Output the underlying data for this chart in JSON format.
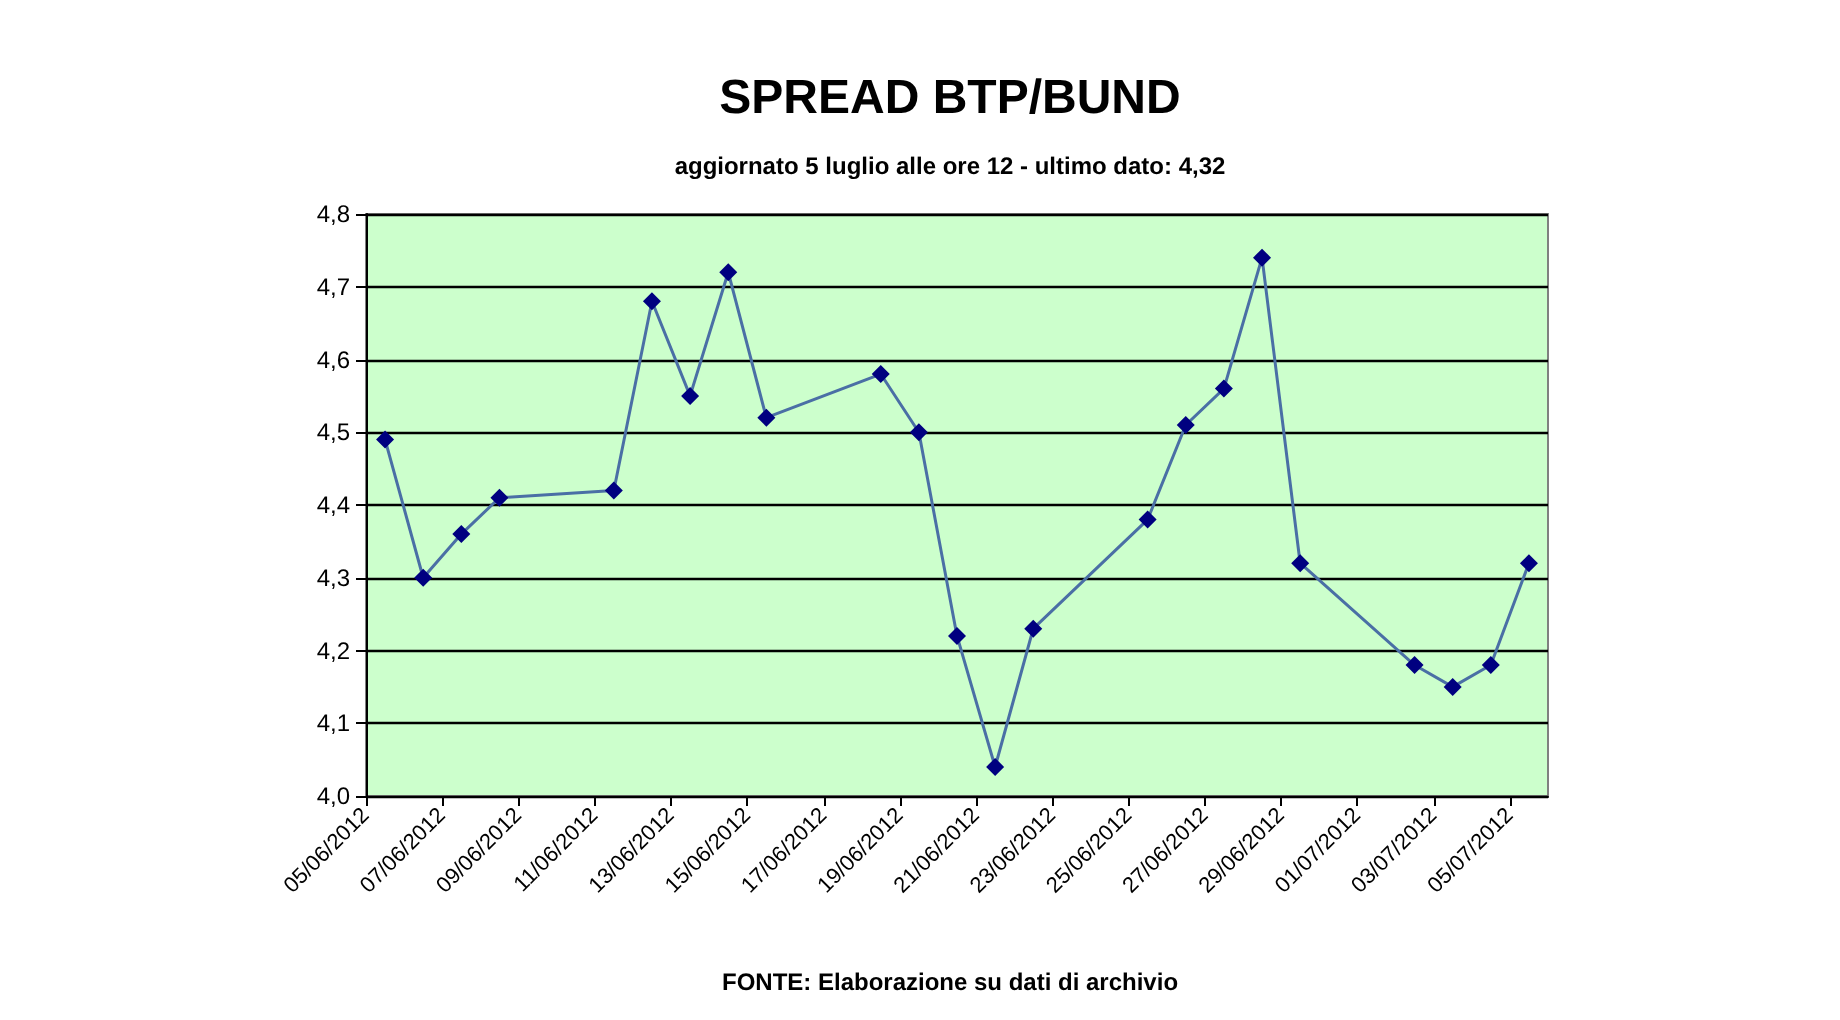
{
  "chart_data": {
    "type": "line",
    "title": "SPREAD BTP/BUND",
    "subtitle": "aggiornato 5 luglio alle ore 12 - ultimo dato: 4,32",
    "annotations": [
      "FONTE: Elaborazione su dati di archivio"
    ],
    "x": [
      "2012-06-05T12:00",
      "2012-06-06T12:00",
      "2012-06-07T12:00",
      "2012-06-08T12:00",
      "2012-06-11T12:00",
      "2012-06-12T12:00",
      "2012-06-13T12:00",
      "2012-06-14T12:00",
      "2012-06-15T12:00",
      "2012-06-18T12:00",
      "2012-06-19T12:00",
      "2012-06-20T12:00",
      "2012-06-21T12:00",
      "2012-06-22T12:00",
      "2012-06-25T12:00",
      "2012-06-26T12:00",
      "2012-06-27T12:00",
      "2012-06-28T12:00",
      "2012-06-29T12:00",
      "2012-07-02T12:00",
      "2012-07-03T12:00",
      "2012-07-04T12:00",
      "2012-07-05T12:00"
    ],
    "series": [
      {
        "color": "#000080",
        "values": [
          4.49,
          4.3,
          4.36,
          4.41,
          4.42,
          4.68,
          4.55,
          4.72,
          4.52,
          4.58,
          4.5,
          4.22,
          4.04,
          4.23,
          4.38,
          4.51,
          4.56,
          4.74,
          4.32,
          4.18,
          4.15,
          4.18,
          4.32
        ]
      }
    ],
    "xlim": [
      "2012-06-05",
      "2012-07-06"
    ],
    "xticks": [
      {
        "value": "2012-06-05",
        "label": "05/06/2012"
      },
      {
        "value": "2012-06-07",
        "label": "07/06/2012"
      },
      {
        "value": "2012-06-09",
        "label": "09/06/2012"
      },
      {
        "value": "2012-06-11",
        "label": "11/06/2012"
      },
      {
        "value": "2012-06-13",
        "label": "13/06/2012"
      },
      {
        "value": "2012-06-15",
        "label": "15/06/2012"
      },
      {
        "value": "2012-06-17",
        "label": "17/06/2012"
      },
      {
        "value": "2012-06-19",
        "label": "19/06/2012"
      },
      {
        "value": "2012-06-21",
        "label": "21/06/2012"
      },
      {
        "value": "2012-06-23",
        "label": "23/06/2012"
      },
      {
        "value": "2012-06-25",
        "label": "25/06/2012"
      },
      {
        "value": "2012-06-27",
        "label": "27/06/2012"
      },
      {
        "value": "2012-06-29",
        "label": "29/06/2012"
      },
      {
        "value": "2012-07-01",
        "label": "01/07/2012"
      },
      {
        "value": "2012-07-03",
        "label": "03/07/2012"
      },
      {
        "value": "2012-07-05",
        "label": "05/07/2012"
      }
    ],
    "ylim": [
      4.0,
      4.8
    ],
    "yticks": [
      {
        "value": 4.0,
        "label": "4,0"
      },
      {
        "value": 4.1,
        "label": "4,1"
      },
      {
        "value": 4.2,
        "label": "4,2"
      },
      {
        "value": 4.3,
        "label": "4,3"
      },
      {
        "value": 4.4,
        "label": "4,4"
      },
      {
        "value": 4.5,
        "label": "4,5"
      },
      {
        "value": 4.6,
        "label": "4,6"
      },
      {
        "value": 4.7,
        "label": "4,7"
      },
      {
        "value": 4.8,
        "label": "4,8"
      }
    ],
    "grid": "y",
    "marker": "diamond",
    "line_style": "solid"
  }
}
